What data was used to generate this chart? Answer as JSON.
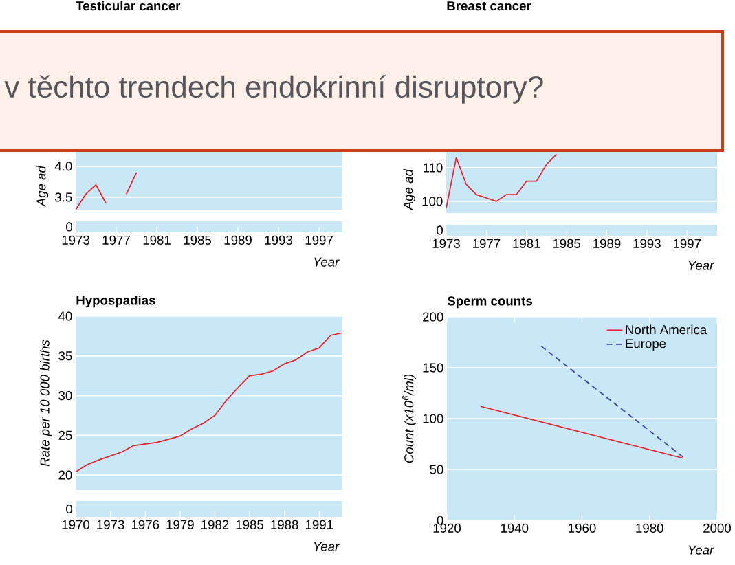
{
  "chart_data": [
    {
      "type": "line",
      "title": "Testicular cancer",
      "ylabel": "Age ad",
      "xlabel": "Year",
      "x": [
        1973,
        1974,
        1975,
        1976,
        1977,
        1978,
        1979
      ],
      "values": [
        3.3,
        3.55,
        3.7,
        3.4,
        null,
        3.55,
        3.9
      ],
      "color": "#e8202a",
      "xlim": [
        1973,
        1999.3
      ],
      "ylim": [
        3.3,
        4.23
      ],
      "xticks": [
        1973,
        1977,
        1981,
        1985,
        1989,
        1993,
        1997
      ],
      "yticks": [
        3.5,
        {
          "value": 4,
          "label": "4.0"
        }
      ],
      "grid": "y",
      "annotations": [
        "0"
      ]
    },
    {
      "type": "line",
      "title": "Breast cancer",
      "ylabel": "Age ad",
      "xlabel": "Year",
      "x": [
        1973,
        1974,
        1975,
        1976,
        1977,
        1978,
        1979,
        1980,
        1981,
        1982,
        1983,
        1984
      ],
      "values": [
        98,
        113,
        105,
        102,
        101,
        100,
        102,
        102,
        106,
        106,
        111,
        114
      ],
      "color": "#e8202a",
      "xlim": [
        1973,
        2000
      ],
      "ylim": [
        96.5,
        114.7
      ],
      "xticks": [
        1973,
        1977,
        1981,
        1985,
        1989,
        1993,
        1997
      ],
      "yticks": [
        100,
        110
      ],
      "grid": "y",
      "annotations": [
        "0"
      ]
    },
    {
      "type": "line",
      "title": "Hypospadias",
      "ylabel": "Rate per 10 000 births",
      "xlabel": "Year",
      "x": [
        1970,
        1971,
        1972,
        1973,
        1974,
        1975,
        1976,
        1977,
        1978,
        1979,
        1980,
        1981,
        1982,
        1983,
        1984,
        1985,
        1986,
        1987,
        1988,
        1989,
        1990,
        1991,
        1992,
        1993
      ],
      "values": [
        20.4,
        21.3,
        21.9,
        22.4,
        22.9,
        23.7,
        23.9,
        24.1,
        24.5,
        24.9,
        25.8,
        26.5,
        27.5,
        29.4,
        31.0,
        32.5,
        32.7,
        33.1,
        34.0,
        34.5,
        35.5,
        36.0,
        37.6,
        37.9
      ],
      "color": "#e8202a",
      "xlim": [
        1970,
        1993
      ],
      "ylim": [
        18.1,
        40
      ],
      "xticks": [
        1970,
        1973,
        1976,
        1979,
        1982,
        1985,
        1988,
        1991
      ],
      "yticks": [
        20,
        25,
        30,
        35,
        40
      ],
      "grid": "y",
      "annotations": [
        "0"
      ]
    },
    {
      "type": "line",
      "title": "Sperm counts",
      "ylabel": "Count (x10$^{6}$/ml)",
      "xlabel": "Year",
      "xlim": [
        1920,
        2000
      ],
      "ylim": [
        0,
        200
      ],
      "xticks": [
        1920,
        1940,
        1960,
        1980,
        2000
      ],
      "yticks": [
        0,
        50,
        100,
        150,
        200
      ],
      "grid": "y",
      "legend": "top right",
      "series": [
        {
          "name": "North America",
          "color": "#e8202a",
          "x": [
            1930,
            1990
          ],
          "values": [
            112,
            61
          ]
        },
        {
          "name": "Europe",
          "color": "#3c3c9c",
          "line_style": "dashed",
          "x": [
            1948,
            1990
          ],
          "values": [
            171,
            62
          ]
        }
      ]
    },
    {
      "type": "other",
      "annotations": [
        "v těchto trendech endokrinní disruptory?"
      ]
    }
  ]
}
